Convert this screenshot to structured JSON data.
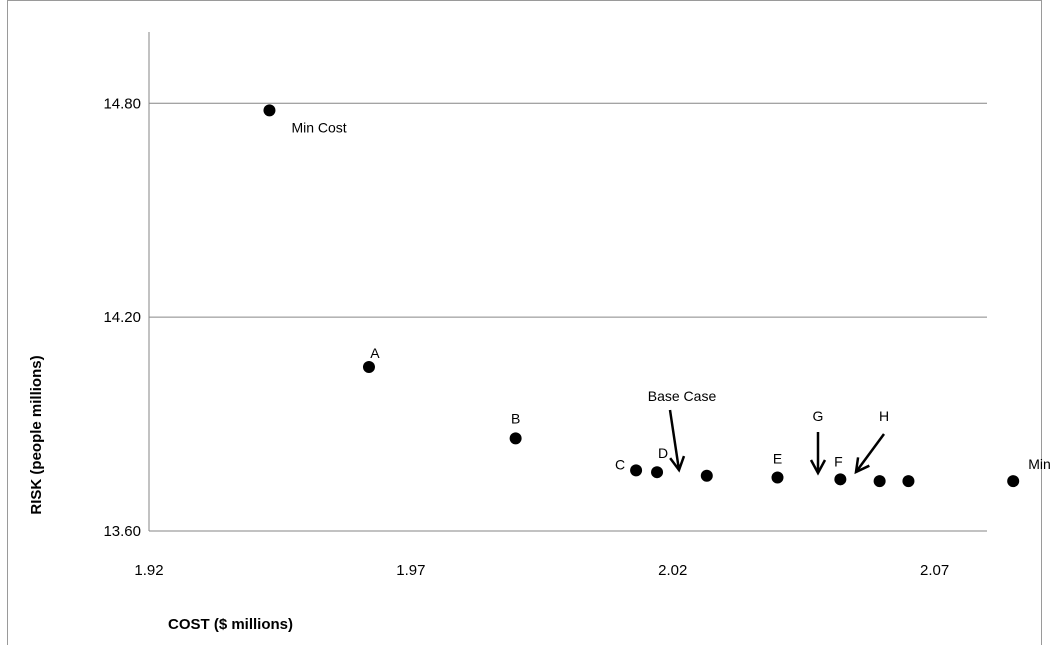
{
  "chart_data": {
    "type": "scatter",
    "title": "",
    "xlabel": "COST ($ millions)",
    "ylabel": "RISK (people millions)",
    "xlim": [
      1.92,
      2.08
    ],
    "ylim": [
      13.6,
      15.0
    ],
    "x_ticks": [
      "1.92",
      "1.97",
      "2.02",
      "2.07"
    ],
    "y_ticks": [
      "13.60",
      "14.20",
      "14.80"
    ],
    "grid": "horizontal",
    "series": [
      {
        "points": [
          {
            "x": 1.943,
            "y": 14.78,
            "label": "Min Cost"
          },
          {
            "x": 1.962,
            "y": 14.06,
            "label": "A"
          },
          {
            "x": 1.99,
            "y": 13.86,
            "label": "B"
          },
          {
            "x": 2.013,
            "y": 13.77,
            "label": "C"
          },
          {
            "x": 2.017,
            "y": 13.765,
            "label": "D"
          },
          {
            "x": 2.0265,
            "y": 13.755,
            "label": "Base Case"
          },
          {
            "x": 2.04,
            "y": 13.75,
            "label": "E"
          },
          {
            "x": 2.052,
            "y": 13.745,
            "label": "F"
          },
          {
            "x": 2.0595,
            "y": 13.74,
            "label": "G"
          },
          {
            "x": 2.065,
            "y": 13.74,
            "label": "H"
          },
          {
            "x": 2.085,
            "y": 13.74,
            "label": "Min Risk"
          }
        ]
      }
    ]
  }
}
